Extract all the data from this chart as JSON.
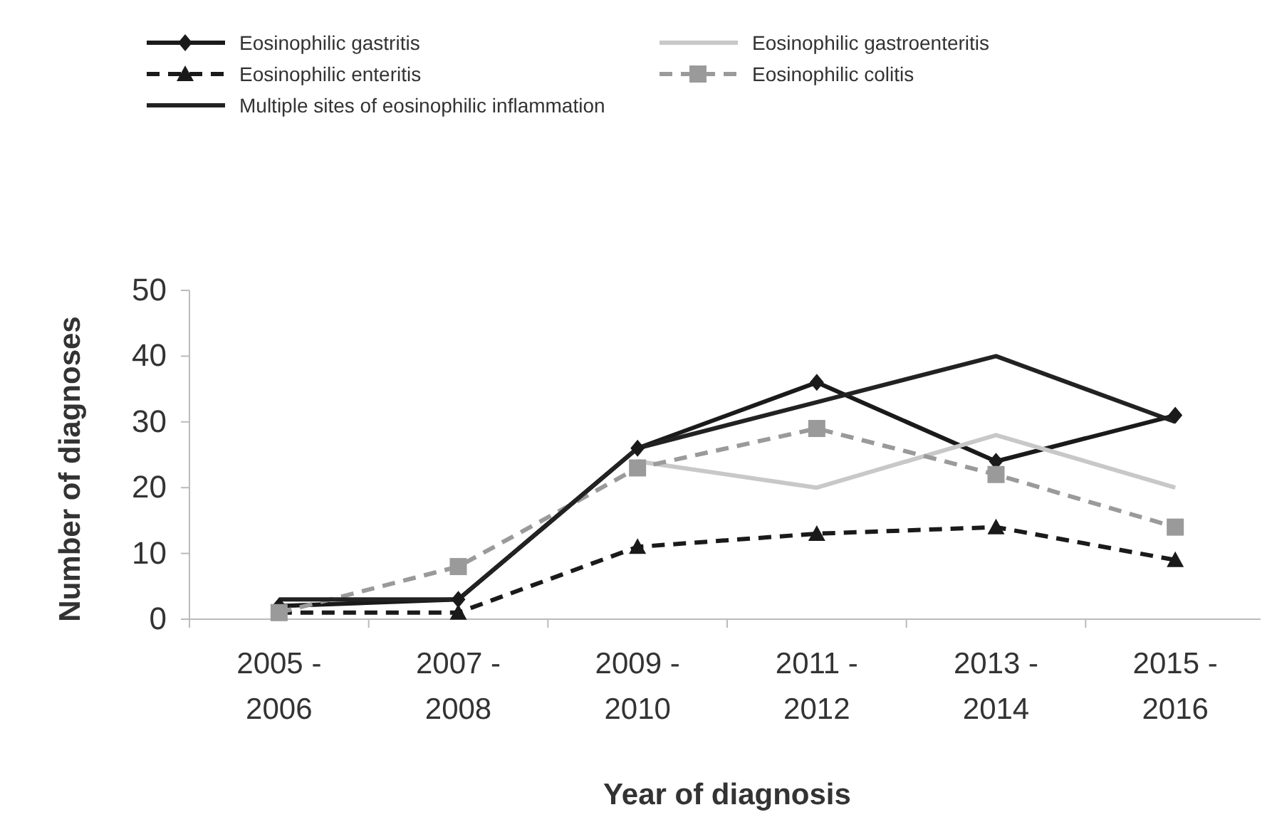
{
  "chart_data": {
    "type": "line",
    "xlabel": "Year of diagnosis",
    "ylabel": "Number of diagnoses",
    "categories": [
      "2005 - 2006",
      "2007 - 2008",
      "2009 - 2010",
      "2011 - 2012",
      "2013 - 2014",
      "2015 - 2016"
    ],
    "ylim": [
      0,
      50
    ],
    "yticks": [
      0,
      10,
      20,
      30,
      40,
      50
    ],
    "grid": false,
    "legend": "top",
    "series": [
      {
        "name": "Eosinophilic gastritis",
        "color": "#1a1a1a",
        "marker": "diamond",
        "line_style": "solid",
        "values": [
          2,
          3,
          26,
          36,
          24,
          31
        ]
      },
      {
        "name": "Eosinophilic gastroenteritis",
        "color": "#c8c8c8",
        "marker": "none",
        "line_style": "solid",
        "values": [
          null,
          null,
          24,
          20,
          28,
          20
        ]
      },
      {
        "name": "Eosinophilic enteritis",
        "color": "#1a1a1a",
        "marker": "triangle",
        "line_style": "dashed",
        "values": [
          1,
          1,
          11,
          13,
          14,
          9
        ]
      },
      {
        "name": "Eosinophilic colitis",
        "color": "#9a9a9a",
        "marker": "square",
        "line_style": "dashed",
        "values": [
          1,
          8,
          23,
          29,
          22,
          14
        ]
      },
      {
        "name": "Multiple sites of eosinophilic inflammation",
        "color": "#222222",
        "marker": "none",
        "line_style": "solid",
        "values": [
          3,
          3,
          26,
          33,
          40,
          30
        ]
      }
    ]
  }
}
